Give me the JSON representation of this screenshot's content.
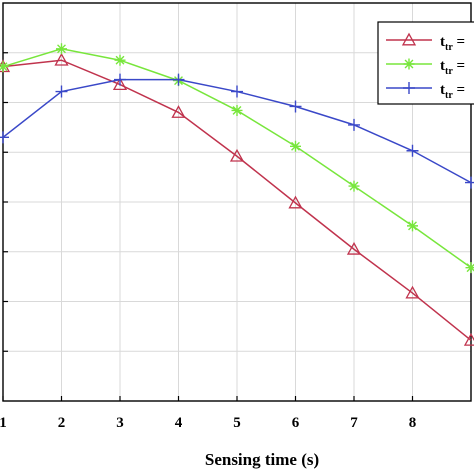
{
  "chart_data": {
    "type": "line",
    "xlabel": "Sensing time (s)",
    "ylabel": "",
    "title": "",
    "x": [
      1,
      2,
      3,
      4,
      5,
      6,
      7,
      8,
      9
    ],
    "xticks": [
      "1",
      "2",
      "3",
      "4",
      "5",
      "6",
      "7",
      "8"
    ],
    "xlim": [
      1,
      9
    ],
    "ylim": [
      0,
      8
    ],
    "grid": true,
    "legend_position": "top-right",
    "series": [
      {
        "legend_label": "t",
        "legend_sub": "tr",
        "legend_suffix": " =",
        "color": "#c0334d",
        "marker": "triangle",
        "values": [
          6.72,
          6.85,
          6.36,
          5.8,
          4.92,
          3.98,
          3.05,
          2.17,
          1.22
        ]
      },
      {
        "legend_label": "t",
        "legend_sub": "tr",
        "legend_suffix": " =",
        "color": "#78e63c",
        "marker": "asterisk",
        "values": [
          6.72,
          7.08,
          6.85,
          6.44,
          5.84,
          5.12,
          4.32,
          3.52,
          2.68
        ]
      },
      {
        "legend_label": "t",
        "legend_sub": "tr",
        "legend_suffix": " =",
        "color": "#3a48c8",
        "marker": "plus",
        "values": [
          5.3,
          6.22,
          6.46,
          6.46,
          6.22,
          5.92,
          5.55,
          5.03,
          4.39
        ]
      }
    ]
  }
}
